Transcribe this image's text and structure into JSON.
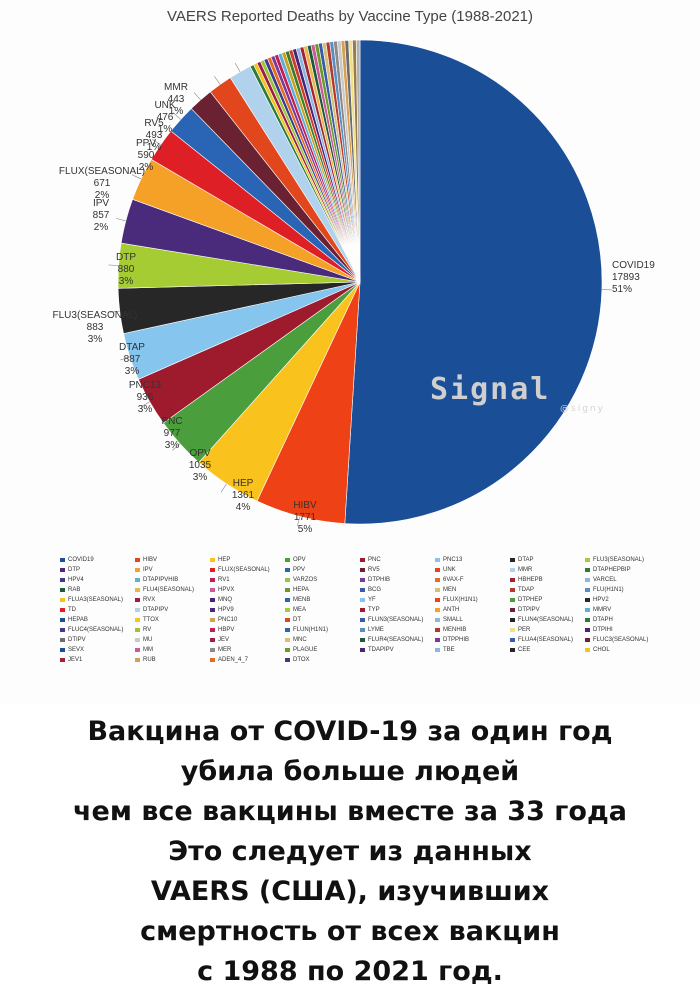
{
  "chart_data": {
    "type": "pie",
    "title": "VAERS Reported Deaths by Vaccine Type (1988-2021)",
    "slices": [
      {
        "name": "COVID19",
        "value": 17893,
        "pct": "51%",
        "color": "#1a4e96"
      },
      {
        "name": "HIBV",
        "value": 1771,
        "pct": "5%",
        "color": "#ee4216"
      },
      {
        "name": "HEP",
        "value": 1361,
        "pct": "4%",
        "color": "#f9c21c"
      },
      {
        "name": "OPV",
        "value": 1035,
        "pct": "3%",
        "color": "#4a9e3c"
      },
      {
        "name": "PNC",
        "value": 977,
        "pct": "3%",
        "color": "#9e1b2e"
      },
      {
        "name": "PNC13",
        "value": 936,
        "pct": "3%",
        "color": "#85c5ee"
      },
      {
        "name": "DTAP",
        "value": 887,
        "pct": "3%",
        "color": "#272727"
      },
      {
        "name": "FLU3(SEASONAL)",
        "value": 883,
        "pct": "3%",
        "color": "#a6cc34"
      },
      {
        "name": "DTP",
        "value": 880,
        "pct": "3%",
        "color": "#4a2a7a"
      },
      {
        "name": "IPV",
        "value": 857,
        "pct": "2%",
        "color": "#f5a128"
      },
      {
        "name": "FLUX(SEASONAL)",
        "value": 671,
        "pct": "2%",
        "color": "#de1f26"
      },
      {
        "name": "PPV",
        "value": 590,
        "pct": "2%",
        "color": "#2a64b4"
      },
      {
        "name": "RV5",
        "value": 493,
        "pct": "1%",
        "color": "#6a2233"
      },
      {
        "name": "UNK",
        "value": 476,
        "pct": "1%",
        "color": "#e2461c"
      },
      {
        "name": "MMR",
        "value": 443,
        "pct": "1%",
        "color": "#b1d2ec"
      }
    ],
    "small_slice_colors": [
      "#2c7a3c",
      "#f3c31e",
      "#9c1e45",
      "#9bc43a",
      "#3c3c8c",
      "#e66a22",
      "#7a3a9a",
      "#c21e56",
      "#5ab0d6",
      "#c8a126",
      "#3e7c2a",
      "#d43a2a",
      "#47247a",
      "#8bb8e0",
      "#a32232",
      "#e8b84a",
      "#1d5a3a",
      "#ca5a9a",
      "#6a9a2a",
      "#3a5aa8",
      "#d3c07a",
      "#b23a2a",
      "#5c8cc4",
      "#8a8a8a",
      "#c9c9c9",
      "#d7a050",
      "#6b6b6b",
      "#f0e08a",
      "#9b7a4a",
      "#b0b0b0"
    ]
  },
  "legend": [
    {
      "label": "COVID19",
      "color": "#1a4e96"
    },
    {
      "label": "HIBV",
      "color": "#ee4216"
    },
    {
      "label": "HEP",
      "color": "#f9c21c"
    },
    {
      "label": "OPV",
      "color": "#4a9e3c"
    },
    {
      "label": "PNC",
      "color": "#9e1b2e"
    },
    {
      "label": "PNC13",
      "color": "#85c5ee"
    },
    {
      "label": "DTAP",
      "color": "#272727"
    },
    {
      "label": "FLU3(SEASONAL)",
      "color": "#a6cc34"
    },
    {
      "label": "DTP",
      "color": "#4a2a7a"
    },
    {
      "label": "IPV",
      "color": "#f5a128"
    },
    {
      "label": "FLUX(SEASONAL)",
      "color": "#de1f26"
    },
    {
      "label": "PPV",
      "color": "#2a64b4"
    },
    {
      "label": "RV5",
      "color": "#6a2233"
    },
    {
      "label": "UNK",
      "color": "#e2461c"
    },
    {
      "label": "MMR",
      "color": "#b1d2ec"
    },
    {
      "label": "DTAPHEPBIP",
      "color": "#2c7a3c"
    },
    {
      "label": "HPV4",
      "color": "#3c3c8c"
    },
    {
      "label": "DTAPIPVHIB",
      "color": "#5ab0d6"
    },
    {
      "label": "RV1",
      "color": "#c21e56"
    },
    {
      "label": "VARZOS",
      "color": "#9bc43a"
    },
    {
      "label": "DTPHIB",
      "color": "#7a3a9a"
    },
    {
      "label": "6VAX-F",
      "color": "#e66a22"
    },
    {
      "label": "HBHEPB",
      "color": "#a32232"
    },
    {
      "label": "VARCEL",
      "color": "#8bb8e0"
    },
    {
      "label": "RAB",
      "color": "#1d5a3a"
    },
    {
      "label": "FLU4(SEASONAL)",
      "color": "#e8b84a"
    },
    {
      "label": "HPVX",
      "color": "#ca5a9a"
    },
    {
      "label": "HEPA",
      "color": "#6a9a2a"
    },
    {
      "label": "BCG",
      "color": "#3a5aa8"
    },
    {
      "label": "MEN",
      "color": "#d3c07a"
    },
    {
      "label": "TDAP",
      "color": "#b23a2a"
    },
    {
      "label": "FLU(H1N1)",
      "color": "#5c8cc4"
    },
    {
      "label": "FLUA3(SEASONAL)",
      "color": "#f3c31e"
    },
    {
      "label": "RVX",
      "color": "#9c1e45"
    },
    {
      "label": "MNQ",
      "color": "#47247a"
    },
    {
      "label": "MENB",
      "color": "#2a64b4"
    },
    {
      "label": "YF",
      "color": "#85c5ee"
    },
    {
      "label": "FLUX(H1N1)",
      "color": "#ee4216"
    },
    {
      "label": "DTPHEP",
      "color": "#4a9e3c"
    },
    {
      "label": "HPV2",
      "color": "#272727"
    },
    {
      "label": "TD",
      "color": "#de1f26"
    },
    {
      "label": "DTAPIPV",
      "color": "#b1d2ec"
    },
    {
      "label": "HPV9",
      "color": "#4a2a7a"
    },
    {
      "label": "MEA",
      "color": "#a6cc34"
    },
    {
      "label": "TYP",
      "color": "#9e1b2e"
    },
    {
      "label": "ANTH",
      "color": "#f5a128"
    },
    {
      "label": "DTPIPV",
      "color": "#6a2233"
    },
    {
      "label": "MMRV",
      "color": "#5ab0d6"
    },
    {
      "label": "HEPAB",
      "color": "#1a4e96"
    },
    {
      "label": "TTOX",
      "color": "#f9c21c"
    },
    {
      "label": "PNC10",
      "color": "#d7a050"
    },
    {
      "label": "DT",
      "color": "#e2461c"
    },
    {
      "label": "FLUN3(SEASONAL)",
      "color": "#3a5aa8"
    },
    {
      "label": "SMALL",
      "color": "#8bb8e0"
    },
    {
      "label": "FLUN4(SEASONAL)",
      "color": "#272727"
    },
    {
      "label": "DTAPH",
      "color": "#2c7a3c"
    },
    {
      "label": "FLUC4(SEASONAL)",
      "color": "#3c3c8c"
    },
    {
      "label": "RV",
      "color": "#9bc43a"
    },
    {
      "label": "HBPV",
      "color": "#c21e56"
    },
    {
      "label": "FLUN(H1N1)",
      "color": "#2a64b4"
    },
    {
      "label": "LYME",
      "color": "#5c8cc4"
    },
    {
      "label": "MENHIB",
      "color": "#b23a2a"
    },
    {
      "label": "PER",
      "color": "#f0e08a"
    },
    {
      "label": "DTPIHI",
      "color": "#47247a"
    },
    {
      "label": "DTIPV",
      "color": "#6b6b6b"
    },
    {
      "label": "MU",
      "color": "#c9c9c9"
    },
    {
      "label": "JEV",
      "color": "#9c1e45"
    },
    {
      "label": "MNC",
      "color": "#d3c07a"
    },
    {
      "label": "FLUR4(SEASONAL)",
      "color": "#1d5a3a"
    },
    {
      "label": "DTPPHIB",
      "color": "#7a3a9a"
    },
    {
      "label": "FLUA4(SEASONAL)",
      "color": "#3a5aa8"
    },
    {
      "label": "FLUC3(SEASONAL)",
      "color": "#6a2233"
    },
    {
      "label": "SEVX",
      "color": "#1a4e96"
    },
    {
      "label": "MM",
      "color": "#ca5a9a"
    },
    {
      "label": "MER",
      "color": "#8a8a8a"
    },
    {
      "label": "PLAGUE",
      "color": "#6a9a2a"
    },
    {
      "label": "TDAPIPV",
      "color": "#47247a"
    },
    {
      "label": "TBE",
      "color": "#8bb8e0"
    },
    {
      "label": "CEE",
      "color": "#272727"
    },
    {
      "label": "CHOL",
      "color": "#f3c31e"
    },
    {
      "label": "JEV1",
      "color": "#a32232"
    },
    {
      "label": "RUB",
      "color": "#d7a050"
    },
    {
      "label": "ADEN_4_7",
      "color": "#e66a22"
    },
    {
      "label": "DTOX",
      "color": "#3c3c8c"
    }
  ],
  "watermark": {
    "text": "Signal",
    "sub": "@signy"
  },
  "caption": {
    "line1": "Вакцина от COVID-19 за один год",
    "line2": "убила больше людей",
    "line3": "чем все вакцины вместе за 33 года",
    "line4": "Это следует из данных",
    "line5": "VAERS (США), изучивших",
    "line6": "смертность от всех вакцин",
    "line7": "с 1988 по 2021 год."
  }
}
